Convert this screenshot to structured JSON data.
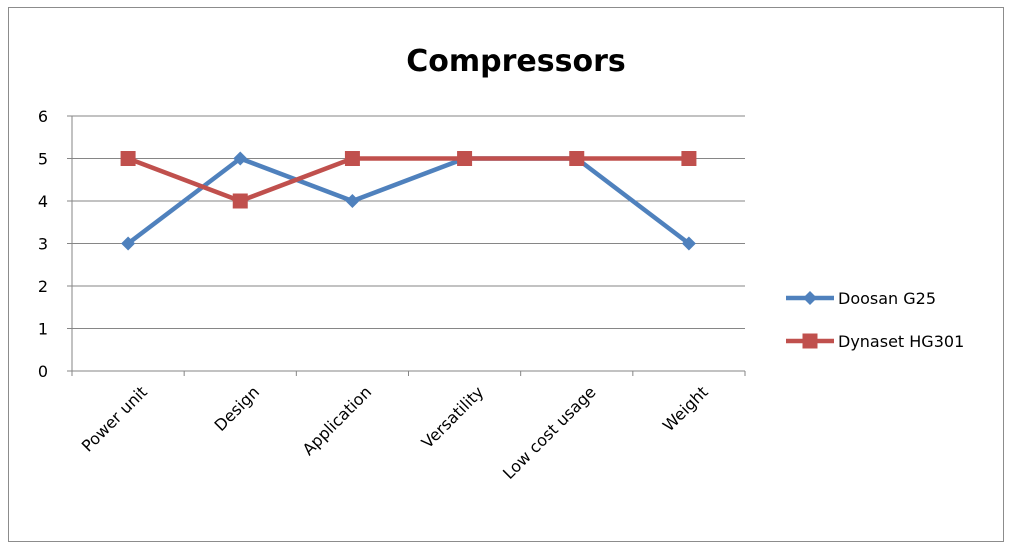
{
  "chart_data": {
    "type": "line",
    "title": "Compressors",
    "xlabel": "",
    "ylabel": "",
    "categories": [
      "Power unit",
      "Design",
      "Application",
      "Versatility",
      "Low cost usage",
      "Weight"
    ],
    "ylim": [
      0,
      6
    ],
    "yticks": [
      "0",
      "1",
      "2",
      "3",
      "4",
      "5",
      "6"
    ],
    "grid": true,
    "legend_position": "right",
    "series": [
      {
        "name": "Doosan G25",
        "values": [
          3,
          5,
          4,
          5,
          5,
          3
        ],
        "color": "#4f81bd",
        "marker": "diamond"
      },
      {
        "name": "Dynaset HG301",
        "values": [
          5,
          4,
          5,
          5,
          5,
          5
        ],
        "color": "#c0504d",
        "marker": "square"
      }
    ]
  }
}
